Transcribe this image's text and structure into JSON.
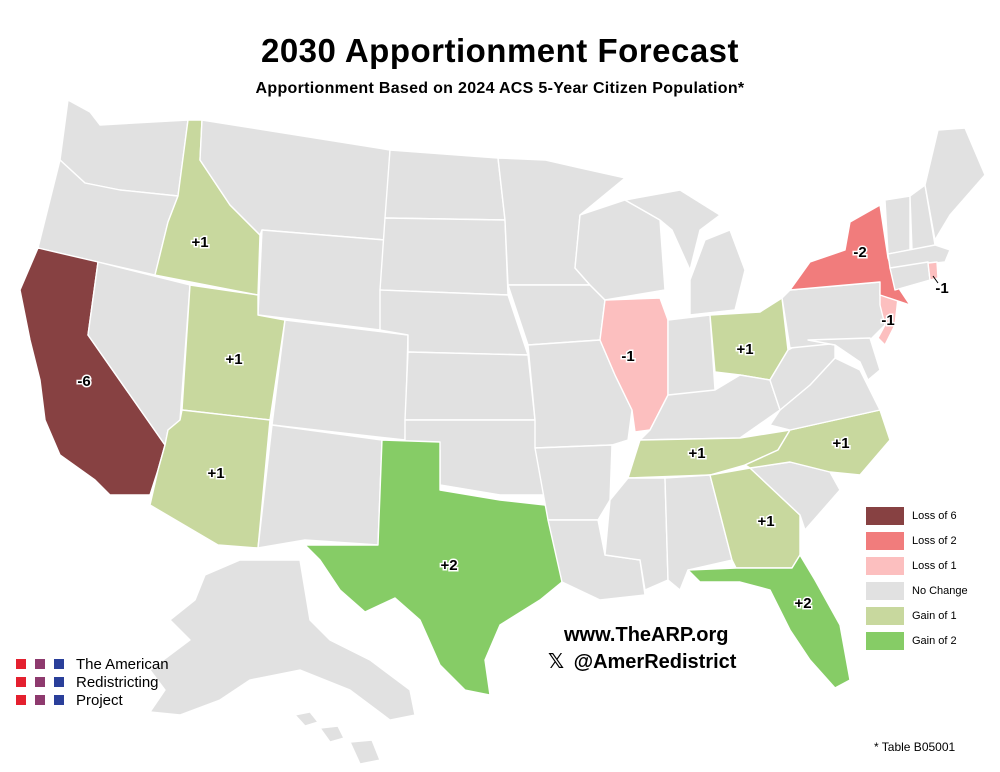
{
  "title": "2030 Apportionment Forecast",
  "subtitle": "Apportionment Based on 2024 ACS 5-Year Citizen Population*",
  "colors": {
    "loss6": "#874142",
    "loss2": "#f17c7c",
    "loss1": "#fcbfbf",
    "nochange": "#e1e1e1",
    "gain1": "#c8d89e",
    "gain2": "#86cc66"
  },
  "legend": [
    {
      "key": "loss6",
      "label": "Loss of 6"
    },
    {
      "key": "loss2",
      "label": "Loss of 2"
    },
    {
      "key": "loss1",
      "label": "Loss of 1"
    },
    {
      "key": "nochange",
      "label": "No Change"
    },
    {
      "key": "gain1",
      "label": "Gain of 1"
    },
    {
      "key": "gain2",
      "label": "Gain of 2"
    }
  ],
  "states": {
    "CA": {
      "change": "-6",
      "category": "loss6"
    },
    "NY": {
      "change": "-2",
      "category": "loss2"
    },
    "IL": {
      "change": "-1",
      "category": "loss1"
    },
    "RI": {
      "change": "-1",
      "category": "loss1"
    },
    "NJ": {
      "change": "-1",
      "category": "loss1"
    },
    "ID": {
      "change": "+1",
      "category": "gain1"
    },
    "UT": {
      "change": "+1",
      "category": "gain1"
    },
    "AZ": {
      "change": "+1",
      "category": "gain1"
    },
    "OH": {
      "change": "+1",
      "category": "gain1"
    },
    "TN": {
      "change": "+1",
      "category": "gain1"
    },
    "NC": {
      "change": "+1",
      "category": "gain1"
    },
    "GA": {
      "change": "+1",
      "category": "gain1"
    },
    "TX": {
      "change": "+2",
      "category": "gain2"
    },
    "FL": {
      "change": "+2",
      "category": "gain2"
    }
  },
  "website": "www.TheARP.org",
  "social_handle": "@AmerRedistrict",
  "social_icon": "x-logo-icon",
  "logo": {
    "lines": [
      "The American",
      "Redistricting",
      "Project"
    ],
    "dot_colors": [
      "#e4202f",
      "#8e3a6e",
      "#2a3f9a"
    ]
  },
  "footnote": "* Table B05001"
}
